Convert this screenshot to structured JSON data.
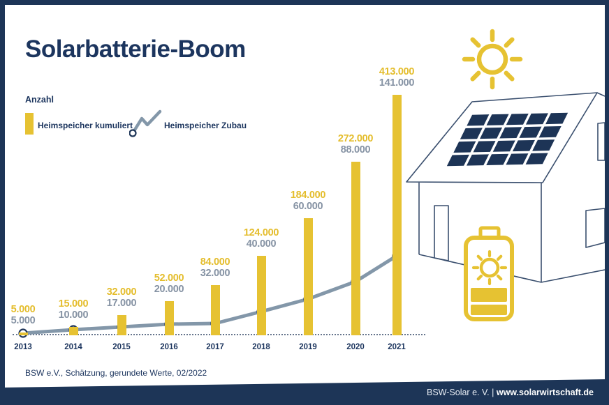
{
  "title": "Solarbatterie-Boom",
  "legend": {
    "axis_label": "Anzahl",
    "bars_label": "Heimspeicher kumuliert",
    "line_label": "Heimspeicher Zubau"
  },
  "chart_data": {
    "type": "bar",
    "subtype": "bar+line combo",
    "categories": [
      "2013",
      "2014",
      "2015",
      "2016",
      "2017",
      "2018",
      "2019",
      "2020",
      "2021"
    ],
    "series": [
      {
        "name": "Heimspeicher kumuliert",
        "type": "bar",
        "color": "#e6c232",
        "values": [
          5000,
          15000,
          32000,
          52000,
          84000,
          124000,
          184000,
          272000,
          413000
        ],
        "labels": [
          "5.000",
          "15.000",
          "32.000",
          "52.000",
          "84.000",
          "124.000",
          "184.000",
          "272.000",
          "413.000"
        ]
      },
      {
        "name": "Heimspeicher Zubau",
        "type": "line",
        "color": "#8397a9",
        "marker": "open-circle",
        "values": [
          5000,
          10000,
          17000,
          20000,
          32000,
          40000,
          60000,
          88000,
          141000
        ],
        "labels": [
          "5.000",
          "10.000",
          "17.000",
          "20.000",
          "32.000",
          "40.000",
          "60.000",
          "88.000",
          "141.000"
        ]
      }
    ],
    "title": "Solarbatterie-Boom",
    "xlabel": "",
    "ylabel": "Anzahl",
    "grid": false,
    "legend_position": "top-left",
    "value_labels_shown": true
  },
  "footer": {
    "source": "BSW e.V., Schätzung, gerundete Werte, 02/2022"
  },
  "bottombar": {
    "org": "BSW-Solar e. V.",
    "separator": "|",
    "url": "www.solarwirtschaft.de"
  },
  "colors": {
    "navy": "#1d3557",
    "yellow": "#e6c232",
    "line_gray": "#8397a9",
    "value_gray": "#8693a4",
    "background": "#ffffff"
  },
  "icons": [
    "sun-icon",
    "house-graphic",
    "solar-panel-icon",
    "battery-icon"
  ]
}
